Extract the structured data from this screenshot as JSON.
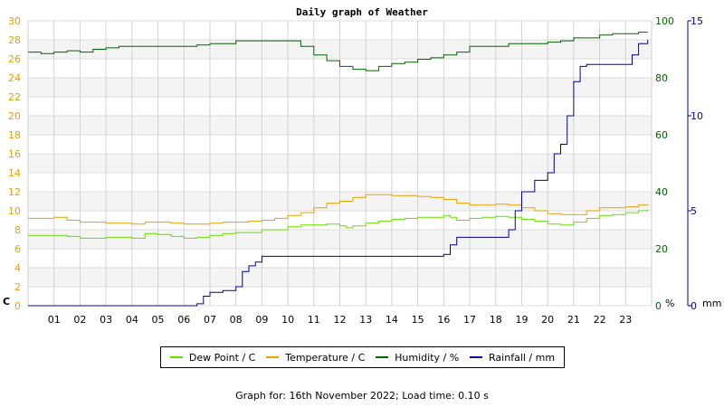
{
  "chart_data": {
    "type": "line",
    "title": "Daily graph of Weather",
    "x_tick_labels": [
      "01",
      "02",
      "03",
      "04",
      "05",
      "06",
      "07",
      "08",
      "09",
      "10",
      "11",
      "12",
      "13",
      "14",
      "15",
      "16",
      "17",
      "18",
      "19",
      "20",
      "21",
      "22",
      "23"
    ],
    "x_range_hours": [
      0,
      24
    ],
    "axes": {
      "temperature": {
        "range": [
          0,
          30
        ],
        "step": 2,
        "unit_label": "C",
        "color": "#e8a000"
      },
      "humidity": {
        "range": [
          0,
          100
        ],
        "step": 20,
        "unit_label": "%",
        "color": "#006400"
      },
      "rainfall": {
        "range": [
          0,
          15
        ],
        "step": 5,
        "unit_label": "mm",
        "color": "#0000a0"
      }
    },
    "grid": true,
    "legend_position": "bottom",
    "series": [
      {
        "name": "Dew Point / C",
        "axis": "temperature",
        "color": "#66dd00",
        "x": [
          0,
          1,
          1.5,
          2,
          3,
          3.5,
          4,
          4.5,
          5,
          5.5,
          6,
          6.5,
          7,
          7.5,
          8,
          9,
          9.5,
          10,
          10.5,
          11,
          11.5,
          12,
          12.25,
          12.5,
          13,
          13.5,
          14,
          14.5,
          15,
          15.5,
          16,
          16.25,
          16.5,
          17,
          17.5,
          18,
          18.5,
          19,
          19.5,
          20,
          20.5,
          21,
          21.5,
          22,
          22.5,
          23,
          23.5,
          23.85
        ],
        "y": [
          7.4,
          7.4,
          7.3,
          7.1,
          7.2,
          7.2,
          7.1,
          7.6,
          7.5,
          7.3,
          7.1,
          7.2,
          7.4,
          7.6,
          7.7,
          8.0,
          8.0,
          8.3,
          8.5,
          8.5,
          8.6,
          8.4,
          8.2,
          8.4,
          8.7,
          8.9,
          9.1,
          9.2,
          9.3,
          9.3,
          9.5,
          9.3,
          9.0,
          9.2,
          9.3,
          9.4,
          9.3,
          9.1,
          8.9,
          8.6,
          8.5,
          8.8,
          9.2,
          9.5,
          9.6,
          9.8,
          10.0,
          10.1
        ]
      },
      {
        "name": "Temperature / C",
        "axis": "temperature",
        "color": "#e8a000",
        "x": [
          0,
          0.5,
          1,
          1.5,
          2,
          3,
          3.5,
          4,
          4.5,
          5,
          5.5,
          6,
          6.5,
          7,
          7.5,
          8,
          8.5,
          9,
          9.5,
          10,
          10.5,
          11,
          11.5,
          12,
          12.5,
          13,
          13.5,
          14,
          14.5,
          15,
          15.5,
          16,
          16.5,
          17,
          17.5,
          18,
          18.5,
          19,
          19.5,
          20,
          20.5,
          21,
          21.5,
          22,
          22.5,
          23,
          23.5,
          23.85
        ],
        "y": [
          9.2,
          9.2,
          9.3,
          9.0,
          8.8,
          8.7,
          8.7,
          8.6,
          8.8,
          8.8,
          8.7,
          8.6,
          8.6,
          8.7,
          8.8,
          8.8,
          8.9,
          9.0,
          9.2,
          9.5,
          9.8,
          10.3,
          10.8,
          11.0,
          11.4,
          11.7,
          11.7,
          11.6,
          11.6,
          11.5,
          11.4,
          11.2,
          10.8,
          10.6,
          10.6,
          10.7,
          10.6,
          10.3,
          10.0,
          9.7,
          9.6,
          9.6,
          10.0,
          10.3,
          10.3,
          10.4,
          10.6,
          10.7
        ]
      },
      {
        "name": "Humidity / %",
        "axis": "humidity",
        "color": "#006400",
        "x": [
          0,
          0.5,
          1,
          1.5,
          2,
          2.5,
          3,
          3.5,
          4,
          5,
          6,
          6.5,
          7,
          8,
          9,
          10,
          10.5,
          11,
          11.5,
          12,
          12.5,
          13,
          13.5,
          14,
          14.5,
          15,
          15.5,
          16,
          16.5,
          17,
          17.5,
          18,
          18.5,
          19,
          19.5,
          20,
          20.5,
          21,
          21.5,
          22,
          22.5,
          23,
          23.5,
          23.85
        ],
        "y": [
          89,
          88.5,
          89,
          89.5,
          89,
          90,
          90.5,
          91,
          91,
          91,
          91,
          91.5,
          92,
          93,
          93,
          93,
          91,
          88,
          86,
          84,
          83,
          82.5,
          84,
          85,
          85.5,
          86.5,
          87,
          88,
          89,
          91,
          91,
          91,
          92,
          92,
          92,
          92.5,
          93,
          94,
          94,
          95,
          95.5,
          95.5,
          96,
          96
        ]
      },
      {
        "name": "Rainfall / mm",
        "axis": "rainfall",
        "color": "#0000a0",
        "x": [
          0,
          6.5,
          6.75,
          7,
          7.5,
          8,
          8.25,
          8.5,
          8.75,
          9,
          16,
          16.25,
          16.5,
          16.75,
          17,
          17.5,
          18,
          18.5,
          18.75,
          19,
          19.5,
          20,
          20.25,
          20.5,
          20.75,
          21,
          21.25,
          21.5,
          22,
          22.5,
          23,
          23.25,
          23.5,
          23.85
        ],
        "y": [
          0,
          0.1,
          0.5,
          0.7,
          0.8,
          1.0,
          1.8,
          2.1,
          2.3,
          2.6,
          2.7,
          3.2,
          3.6,
          3.6,
          3.6,
          3.6,
          3.6,
          4.0,
          5.0,
          6.0,
          6.6,
          7.0,
          8.0,
          8.5,
          10.0,
          11.8,
          12.6,
          12.7,
          12.7,
          12.7,
          12.7,
          13.2,
          13.8,
          14.0
        ]
      }
    ],
    "footer": "Graph for: 16th November 2022; Load time: 0.10 s"
  }
}
